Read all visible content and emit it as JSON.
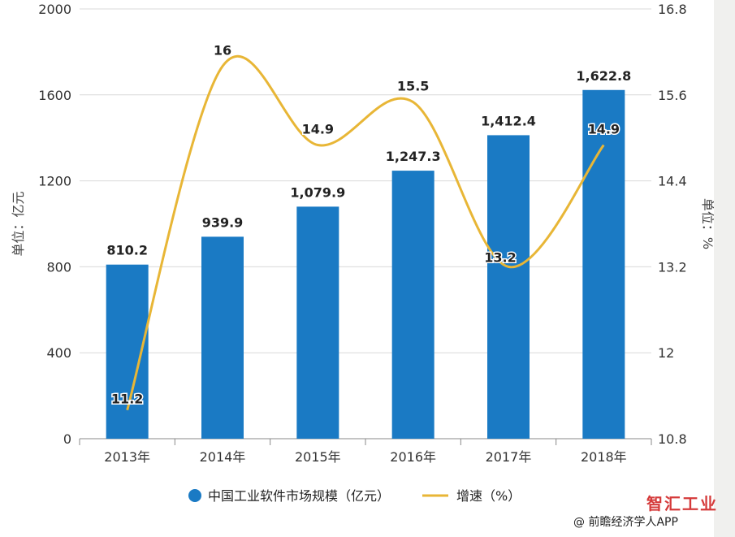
{
  "chart_data": {
    "type": "bar+line",
    "categories": [
      "2013年",
      "2014年",
      "2015年",
      "2016年",
      "2017年",
      "2018年"
    ],
    "series": [
      {
        "name": "中国工业软件市场规模（亿元）",
        "type": "bar",
        "axis": "left",
        "values": [
          810.2,
          939.9,
          1079.9,
          1247.3,
          1412.4,
          1622.8
        ],
        "labels": [
          "810.2",
          "939.9",
          "1,079.9",
          "1,247.3",
          "1,412.4",
          "1,622.8"
        ],
        "color": "#1a7ac4"
      },
      {
        "name": "增速（%）",
        "type": "line",
        "axis": "right",
        "values": [
          11.2,
          16,
          14.9,
          15.5,
          13.2,
          14.9
        ],
        "labels": [
          "11.2",
          "16",
          "14.9",
          "15.5",
          "13.2",
          "14.9"
        ],
        "color": "#e8b636"
      }
    ],
    "y_left": {
      "label": "单位：亿元",
      "ylim": [
        0,
        2000
      ],
      "ticks": [
        "0",
        "400",
        "800",
        "1200",
        "1600",
        "2000"
      ]
    },
    "y_right": {
      "label": "单位：%",
      "ylim": [
        10.8,
        16.8
      ],
      "ticks": [
        "10.8",
        "12",
        "13.2",
        "14.4",
        "15.6",
        "16.8"
      ]
    },
    "grid": "horizontal",
    "legend_position": "bottom"
  },
  "credit": "@ 前瞻经济学人APP",
  "brand": "智汇工业"
}
